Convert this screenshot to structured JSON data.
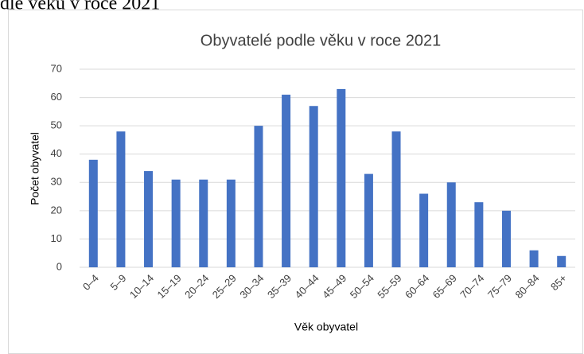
{
  "heading": "dle věku v roce 2021",
  "chart_data": {
    "type": "bar",
    "title": "Obyvatelé podle věku v roce 2021",
    "x_label": "Věk obyvatel",
    "y_label": "Počet obyvatel",
    "categories": [
      "0–4",
      "5–9",
      "10–14",
      "15–19",
      "20–24",
      "25–29",
      "30–34",
      "35–39",
      "40–44",
      "45–49",
      "50–54",
      "55–59",
      "60–64",
      "65–69",
      "70–74",
      "75–79",
      "80–84",
      "85+"
    ],
    "values": [
      38,
      48,
      34,
      31,
      31,
      31,
      50,
      61,
      57,
      63,
      33,
      48,
      26,
      30,
      23,
      20,
      6,
      4
    ],
    "color": "#4472c4",
    "ylim": [
      0,
      70
    ],
    "yticks": [
      0,
      10,
      20,
      30,
      40,
      50,
      60,
      70
    ],
    "grid": true
  }
}
